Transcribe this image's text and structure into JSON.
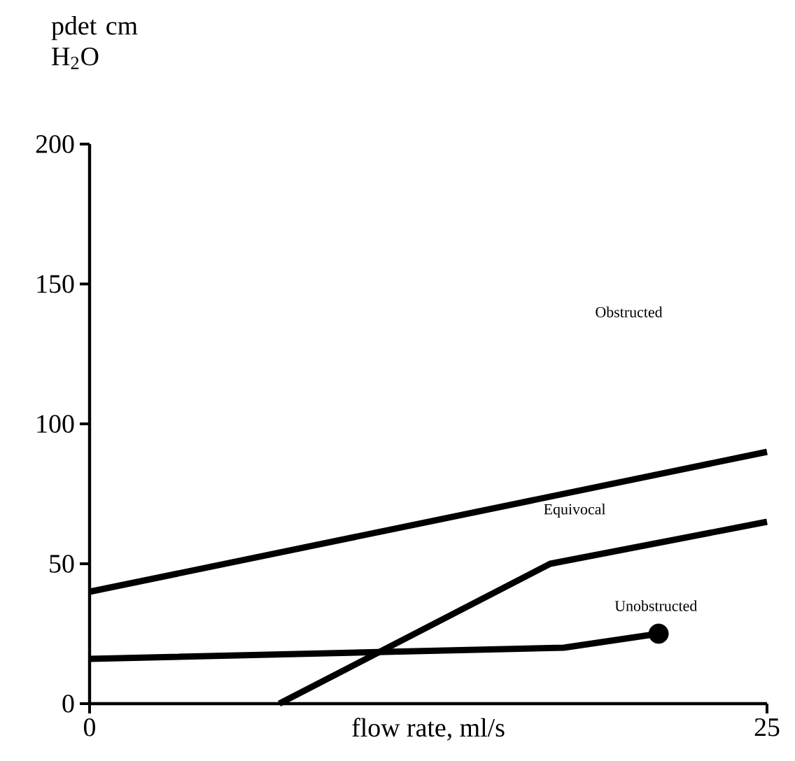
{
  "chart_data": {
    "type": "line",
    "xlabel": "flow rate, ml/s",
    "ylabel": "pdet cm H$_{2}$O",
    "xlim": [
      0,
      25
    ],
    "xticks": [
      0,
      25
    ],
    "ylim": [
      0,
      200
    ],
    "yticks": [
      0,
      50,
      100,
      150,
      200
    ],
    "grid": false,
    "marker": "none",
    "line_style": "solid",
    "annotations": [
      "Obstructed",
      "Equivocal",
      "Unobstructed"
    ],
    "series": [
      {
        "color": "#000000",
        "x": [
          0,
          25
        ],
        "values": [
          40,
          90
        ]
      },
      {
        "color": "#000000",
        "x": [
          7,
          17,
          25
        ],
        "values": [
          0,
          50,
          65
        ]
      },
      {
        "color": "#000000",
        "x": [
          0,
          17.5,
          21
        ],
        "values": [
          16,
          20,
          25
        ]
      },
      {
        "type": "scatter",
        "marker": "circle",
        "color": "#000000",
        "x": [
          21
        ],
        "values": [
          25
        ]
      }
    ]
  }
}
